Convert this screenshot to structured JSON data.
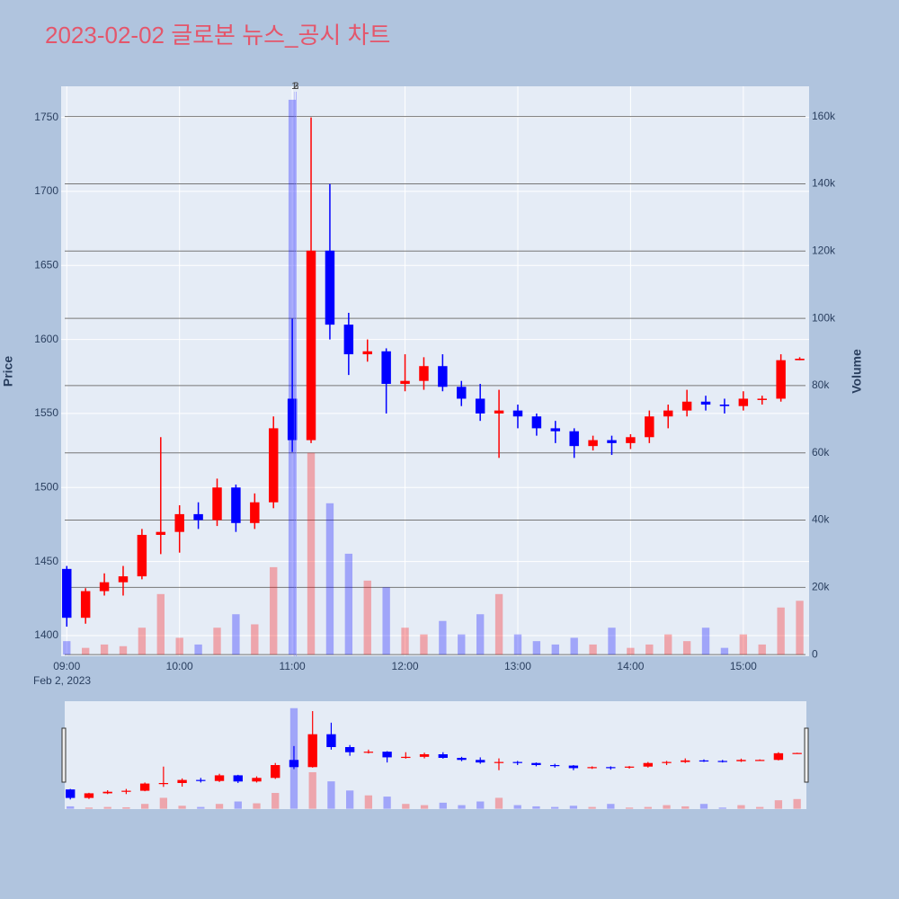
{
  "chart_data": {
    "type": "candlestick",
    "title": "2023-02-02 글로본 뉴스_공시 차트",
    "y_label": "Price",
    "y2_label": "Volume",
    "x_date_label": "Feb 2, 2023",
    "increasing_color": "#ff0000",
    "decreasing_color": "#0000ff",
    "x": [
      "2023-02-02 09:00",
      "2023-02-02 09:10",
      "2023-02-02 09:20",
      "2023-02-02 09:30",
      "2023-02-02 09:40",
      "2023-02-02 09:50",
      "2023-02-02 10:00",
      "2023-02-02 10:10",
      "2023-02-02 10:20",
      "2023-02-02 10:30",
      "2023-02-02 10:40",
      "2023-02-02 10:50",
      "2023-02-02 11:00",
      "2023-02-02 11:10",
      "2023-02-02 11:20",
      "2023-02-02 11:30",
      "2023-02-02 11:40",
      "2023-02-02 11:50",
      "2023-02-02 12:00",
      "2023-02-02 12:10",
      "2023-02-02 12:20",
      "2023-02-02 12:30",
      "2023-02-02 12:40",
      "2023-02-02 12:50",
      "2023-02-02 13:00",
      "2023-02-02 13:10",
      "2023-02-02 13:20",
      "2023-02-02 13:30",
      "2023-02-02 13:40",
      "2023-02-02 13:50",
      "2023-02-02 14:00",
      "2023-02-02 14:10",
      "2023-02-02 14:20",
      "2023-02-02 14:30",
      "2023-02-02 14:40",
      "2023-02-02 14:50",
      "2023-02-02 15:00",
      "2023-02-02 15:10",
      "2023-02-02 15:20",
      "2023-02-02 15:30"
    ],
    "open": [
      1445,
      1412,
      1430,
      1436,
      1440,
      1468,
      1470,
      1482,
      1478,
      1500,
      1476,
      1490,
      1560,
      1532,
      1660,
      1610,
      1590,
      1592,
      1570,
      1572,
      1582,
      1568,
      1560,
      1550,
      1552,
      1548,
      1540,
      1538,
      1528,
      1532,
      1530,
      1534,
      1548,
      1552,
      1558,
      1556,
      1555,
      1560,
      1560,
      1586
    ],
    "high": [
      1447,
      1432,
      1442,
      1447,
      1472,
      1534,
      1488,
      1490,
      1506,
      1502,
      1496,
      1548,
      1614,
      1750,
      1705,
      1618,
      1600,
      1594,
      1590,
      1588,
      1590,
      1572,
      1570,
      1566,
      1556,
      1550,
      1545,
      1540,
      1535,
      1535,
      1536,
      1552,
      1556,
      1566,
      1562,
      1560,
      1565,
      1562,
      1590,
      1588
    ],
    "low": [
      1406,
      1408,
      1427,
      1427,
      1438,
      1455,
      1456,
      1472,
      1474,
      1470,
      1472,
      1486,
      1524,
      1530,
      1600,
      1576,
      1585,
      1550,
      1565,
      1566,
      1565,
      1555,
      1545,
      1520,
      1540,
      1535,
      1530,
      1520,
      1525,
      1522,
      1526,
      1530,
      1540,
      1548,
      1552,
      1550,
      1552,
      1556,
      1558,
      1586
    ],
    "close": [
      1412,
      1430,
      1436,
      1440,
      1468,
      1470,
      1482,
      1478,
      1500,
      1476,
      1490,
      1540,
      1532,
      1660,
      1610,
      1590,
      1592,
      1570,
      1572,
      1582,
      1568,
      1560,
      1550,
      1552,
      1548,
      1540,
      1538,
      1528,
      1532,
      1530,
      1534,
      1548,
      1552,
      1558,
      1556,
      1555,
      1560,
      1560,
      1586,
      1587
    ],
    "volume": [
      4000,
      2000,
      3000,
      2500,
      8000,
      18000,
      5000,
      3000,
      8000,
      12000,
      9000,
      26000,
      165000,
      60000,
      45000,
      30000,
      22000,
      20000,
      8000,
      6000,
      10000,
      6000,
      12000,
      18000,
      6000,
      4000,
      3000,
      5000,
      3000,
      8000,
      2000,
      3000,
      6000,
      4000,
      8000,
      2000,
      6000,
      3000,
      14000,
      16000
    ],
    "annotations": [
      {
        "text": "1",
        "x": "2023-02-02 11:01"
      },
      {
        "text": "2",
        "x": "2023-02-02 11:02"
      },
      {
        "text": "3",
        "x": "2023-02-02 11:02"
      }
    ],
    "xlim": [
      "2023-02-02 08:57",
      "2023-02-02 15:35"
    ],
    "xticks": [
      {
        "value": "2023-02-02 09:00",
        "label": "09:00"
      },
      {
        "value": "2023-02-02 10:00",
        "label": "10:00"
      },
      {
        "value": "2023-02-02 11:00",
        "label": "11:00"
      },
      {
        "value": "2023-02-02 12:00",
        "label": "12:00"
      },
      {
        "value": "2023-02-02 13:00",
        "label": "13:00"
      },
      {
        "value": "2023-02-02 14:00",
        "label": "14:00"
      },
      {
        "value": "2023-02-02 15:00",
        "label": "15:00"
      }
    ],
    "ylim": [
      1386,
      1771
    ],
    "yticks": [
      1400,
      1450,
      1500,
      1550,
      1600,
      1650,
      1700,
      1750
    ],
    "y2lim": [
      -500,
      169000
    ],
    "y2ticks": [
      0,
      {
        "value": 20000,
        "label": "20k"
      },
      {
        "value": 40000,
        "label": "40k"
      },
      {
        "value": 60000,
        "label": "60k"
      },
      {
        "value": 80000,
        "label": "80k"
      },
      {
        "value": 100000,
        "label": "100k"
      },
      {
        "value": 120000,
        "label": "120k"
      },
      {
        "value": 140000,
        "label": "140k"
      },
      {
        "value": 160000,
        "label": "160k"
      }
    ],
    "grid": true
  }
}
